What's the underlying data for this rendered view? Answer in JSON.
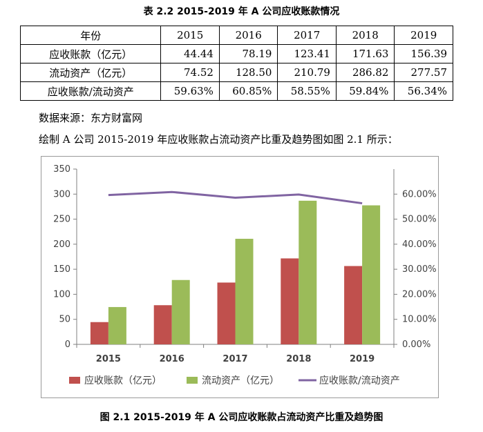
{
  "table_title": "表 2.2 2015-2019 年 A 公司应收账款情况",
  "table": {
    "header": [
      "年份",
      "2015",
      "2016",
      "2017",
      "2018",
      "2019"
    ],
    "rows": [
      [
        "应收账款（亿元）",
        "44.44",
        "78.19",
        "123.41",
        "171.63",
        "156.39"
      ],
      [
        "流动资产（亿元）",
        "74.52",
        "128.50",
        "210.79",
        "286.82",
        "277.57"
      ],
      [
        "应收账款/流动资产",
        "59.63%",
        "60.85%",
        "58.55%",
        "59.84%",
        "56.34%"
      ]
    ]
  },
  "source_line": "数据来源：东方财富网",
  "body_line": "绘制 A 公司 2015-2019 年应收账款占流动资产比重及趋势图如图 2.1 所示：",
  "chart_data": {
    "type": "bar",
    "categories": [
      "2015",
      "2016",
      "2017",
      "2018",
      "2019"
    ],
    "series": [
      {
        "name": "应收账款（亿元）",
        "values": [
          44.44,
          78.19,
          123.41,
          171.63,
          156.39
        ],
        "color": "#c0504d",
        "axis": "left",
        "kind": "bar"
      },
      {
        "name": "流动资产（亿元）",
        "values": [
          74.52,
          128.5,
          210.79,
          286.82,
          277.57
        ],
        "color": "#9bbb59",
        "axis": "left",
        "kind": "bar"
      },
      {
        "name": "应收账款/流动资产",
        "values": [
          0.5963,
          0.6085,
          0.5855,
          0.5984,
          0.5634
        ],
        "color": "#8064a2",
        "axis": "right",
        "kind": "line"
      }
    ],
    "y_left": {
      "min": 0,
      "max": 350,
      "ticks": [
        "0",
        "50",
        "100",
        "150",
        "200",
        "250",
        "300",
        "350"
      ]
    },
    "y_right": {
      "min": 0,
      "max": 0.7,
      "ticks": [
        "0.00%",
        "10.00%",
        "20.00%",
        "30.00%",
        "40.00%",
        "50.00%",
        "60.00%"
      ]
    },
    "grid": false,
    "legend_position": "bottom"
  },
  "caption": "图 2.1 2015-2019 年 A 公司应收账款占流动资产比重及趋势图"
}
